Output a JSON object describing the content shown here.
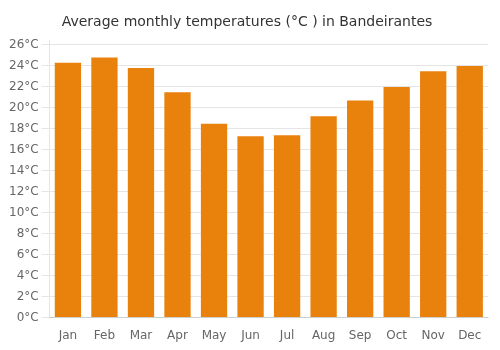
{
  "chart_data": {
    "type": "bar",
    "title": "Average monthly temperatures (°C ) in Bandeirantes",
    "categories": [
      "Jan",
      "Feb",
      "Mar",
      "Apr",
      "May",
      "Jun",
      "Jul",
      "Aug",
      "Sep",
      "Oct",
      "Nov",
      "Dec"
    ],
    "values": [
      24.3,
      24.8,
      23.8,
      21.5,
      18.5,
      17.3,
      17.4,
      19.2,
      20.7,
      22.0,
      23.5,
      24.0
    ],
    "color": "#E8820C",
    "ylim": [
      0,
      26.4
    ],
    "yticks": [
      {
        "value": 0,
        "label": "0°C"
      },
      {
        "value": 2,
        "label": "2°C"
      },
      {
        "value": 4,
        "label": "4°C"
      },
      {
        "value": 6,
        "label": "6°C"
      },
      {
        "value": 8,
        "label": "8°C"
      },
      {
        "value": 10,
        "label": "10°C"
      },
      {
        "value": 12,
        "label": "12°C"
      },
      {
        "value": 14,
        "label": "14°C"
      },
      {
        "value": 16,
        "label": "16°C"
      },
      {
        "value": 18,
        "label": "18°C"
      },
      {
        "value": 20,
        "label": "20°C"
      },
      {
        "value": 22,
        "label": "22°C"
      },
      {
        "value": 24,
        "label": "24°C"
      },
      {
        "value": 26,
        "label": "26°C"
      }
    ],
    "grid": true
  }
}
